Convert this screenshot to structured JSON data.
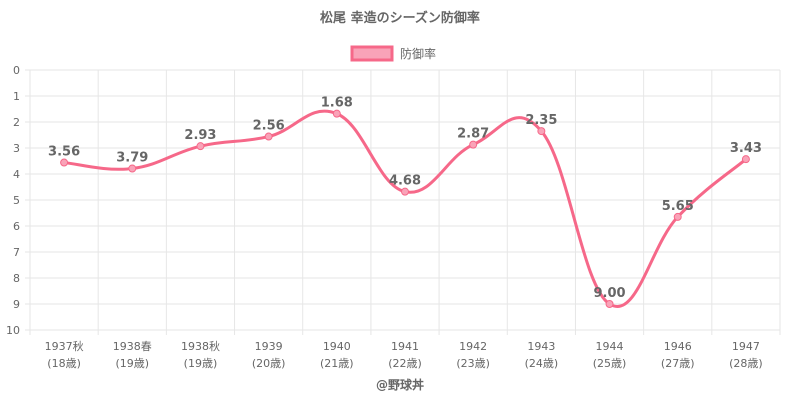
{
  "chart_data": {
    "type": "line",
    "title": "松尾 幸造のシーズン防御率",
    "legend": {
      "position": "top",
      "label": "防御率"
    },
    "categories": [
      [
        "1937秋",
        "(18歳)"
      ],
      [
        "1938春",
        "(19歳)"
      ],
      [
        "1938秋",
        "(19歳)"
      ],
      [
        "1939",
        "(20歳)"
      ],
      [
        "1940",
        "(21歳)"
      ],
      [
        "1941",
        "(22歳)"
      ],
      [
        "1942",
        "(23歳)"
      ],
      [
        "1943",
        "(24歳)"
      ],
      [
        "1944",
        "(25歳)"
      ],
      [
        "1946",
        "(27歳)"
      ],
      [
        "1947",
        "(28歳)"
      ]
    ],
    "series": [
      {
        "name": "防御率",
        "values": [
          3.56,
          3.79,
          2.93,
          2.56,
          1.68,
          4.68,
          2.87,
          2.35,
          9.0,
          5.65,
          3.43
        ],
        "labels": [
          "3.56",
          "3.79",
          "2.93",
          "2.56",
          "1.68",
          "4.68",
          "2.87",
          "2.35",
          "9.00",
          "5.65",
          "3.43"
        ],
        "color": "#f66889"
      }
    ],
    "ylim": [
      0,
      10
    ],
    "y_reversed": true,
    "yticks": [
      0,
      1,
      2,
      3,
      4,
      5,
      6,
      7,
      8,
      9,
      10
    ],
    "grid": true
  },
  "credit": "@野球丼",
  "colors": {
    "line": "#f66889",
    "fill": "#f9a3b8",
    "text": "#666666",
    "grid": "#e6e6e6"
  }
}
